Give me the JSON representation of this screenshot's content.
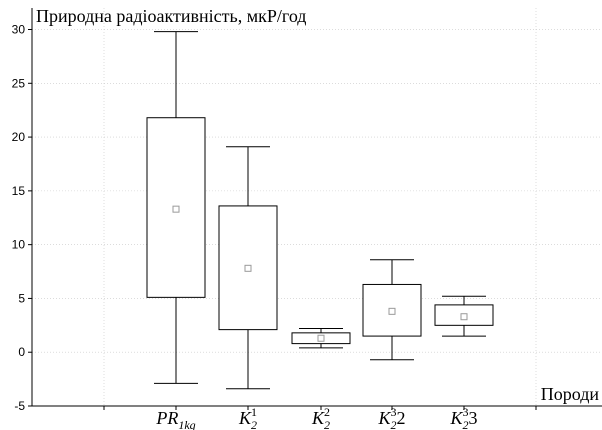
{
  "chart_data": {
    "type": "box",
    "ylabel": "Природна радіоактивність, мкР/год",
    "xlabel": "Породи",
    "ylim": [
      -5,
      32
    ],
    "yticks": [
      -5,
      0,
      5,
      10,
      15,
      20,
      25,
      30
    ],
    "ytick_labels": [
      "-5",
      "0",
      "5",
      "10",
      "15",
      "20",
      "25",
      "30"
    ],
    "grid": true,
    "categories": [
      {
        "base": "PR",
        "sub": "1kg",
        "sup": "",
        "suffix": ""
      },
      {
        "base": "K",
        "sub": "2",
        "sup": "1",
        "suffix": ""
      },
      {
        "base": "K",
        "sub": "2",
        "sup": "2",
        "suffix": ""
      },
      {
        "base": "K",
        "sub": "2",
        "sup": "3",
        "suffix": "2"
      },
      {
        "base": "K",
        "sub": "2",
        "sup": "3",
        "suffix": "3"
      }
    ],
    "boxes": [
      {
        "mean": 13.3,
        "q1": 5.1,
        "q3": 21.8,
        "whisker_low": -2.9,
        "whisker_high": 29.8
      },
      {
        "mean": 7.8,
        "q1": 2.1,
        "q3": 13.6,
        "whisker_low": -3.4,
        "whisker_high": 19.1
      },
      {
        "mean": 1.3,
        "q1": 0.8,
        "q3": 1.8,
        "whisker_low": 0.4,
        "whisker_high": 2.2
      },
      {
        "mean": 3.8,
        "q1": 1.5,
        "q3": 6.3,
        "whisker_low": -0.7,
        "whisker_high": 8.6
      },
      {
        "mean": 3.3,
        "q1": 2.5,
        "q3": 4.4,
        "whisker_low": 1.5,
        "whisker_high": 5.2
      }
    ]
  }
}
